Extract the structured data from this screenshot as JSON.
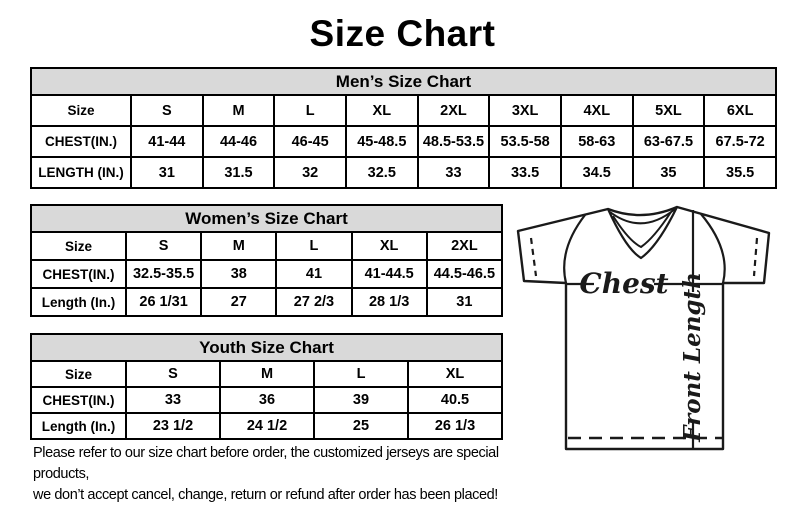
{
  "title": "Size Chart",
  "tables": {
    "mens": {
      "header": "Men’s Size Chart",
      "rows": [
        [
          "Size",
          "S",
          "M",
          "L",
          "XL",
          "2XL",
          "3XL",
          "4XL",
          "5XL",
          "6XL"
        ],
        [
          "CHEST(IN.)",
          "41-44",
          "44-46",
          "46-45",
          "45-48.5",
          "48.5-53.5",
          "53.5-58",
          "58-63",
          "63-67.5",
          "67.5-72"
        ],
        [
          "LENGTH (IN.)",
          "31",
          "31.5",
          "32",
          "32.5",
          "33",
          "33.5",
          "34.5",
          "35",
          "35.5"
        ]
      ]
    },
    "womens": {
      "header": "Women’s Size Chart",
      "rows": [
        [
          "Size",
          "S",
          "M",
          "L",
          "XL",
          "2XL"
        ],
        [
          "CHEST(IN.)",
          "32.5-35.5",
          "38",
          "41",
          "41-44.5",
          "44.5-46.5"
        ],
        [
          "Length (In.)",
          "26 1/31",
          "27",
          "27 2/3",
          "28 1/3",
          "31"
        ]
      ]
    },
    "youth": {
      "header": "Youth Size Chart",
      "rows": [
        [
          "Size",
          "S",
          "M",
          "L",
          "XL"
        ],
        [
          "CHEST(IN.)",
          "33",
          "36",
          "39",
          "40.5"
        ],
        [
          "Length (In.)",
          "23 1/2",
          "24 1/2",
          "25",
          "26 1/3"
        ]
      ]
    }
  },
  "diagram": {
    "chest_label": "Chest",
    "front_length_label": "Front Length"
  },
  "footer": {
    "line1": "Please refer to our size chart before order, the customized jerseys are special products,",
    "line2": "we don’t accept cancel, change, return or refund after order has been placed!"
  },
  "colors": {
    "header_bg": "#d9d9d9",
    "border": "#000000",
    "line": "#1a1a1a",
    "text": "#000000",
    "background": "#ffffff"
  }
}
